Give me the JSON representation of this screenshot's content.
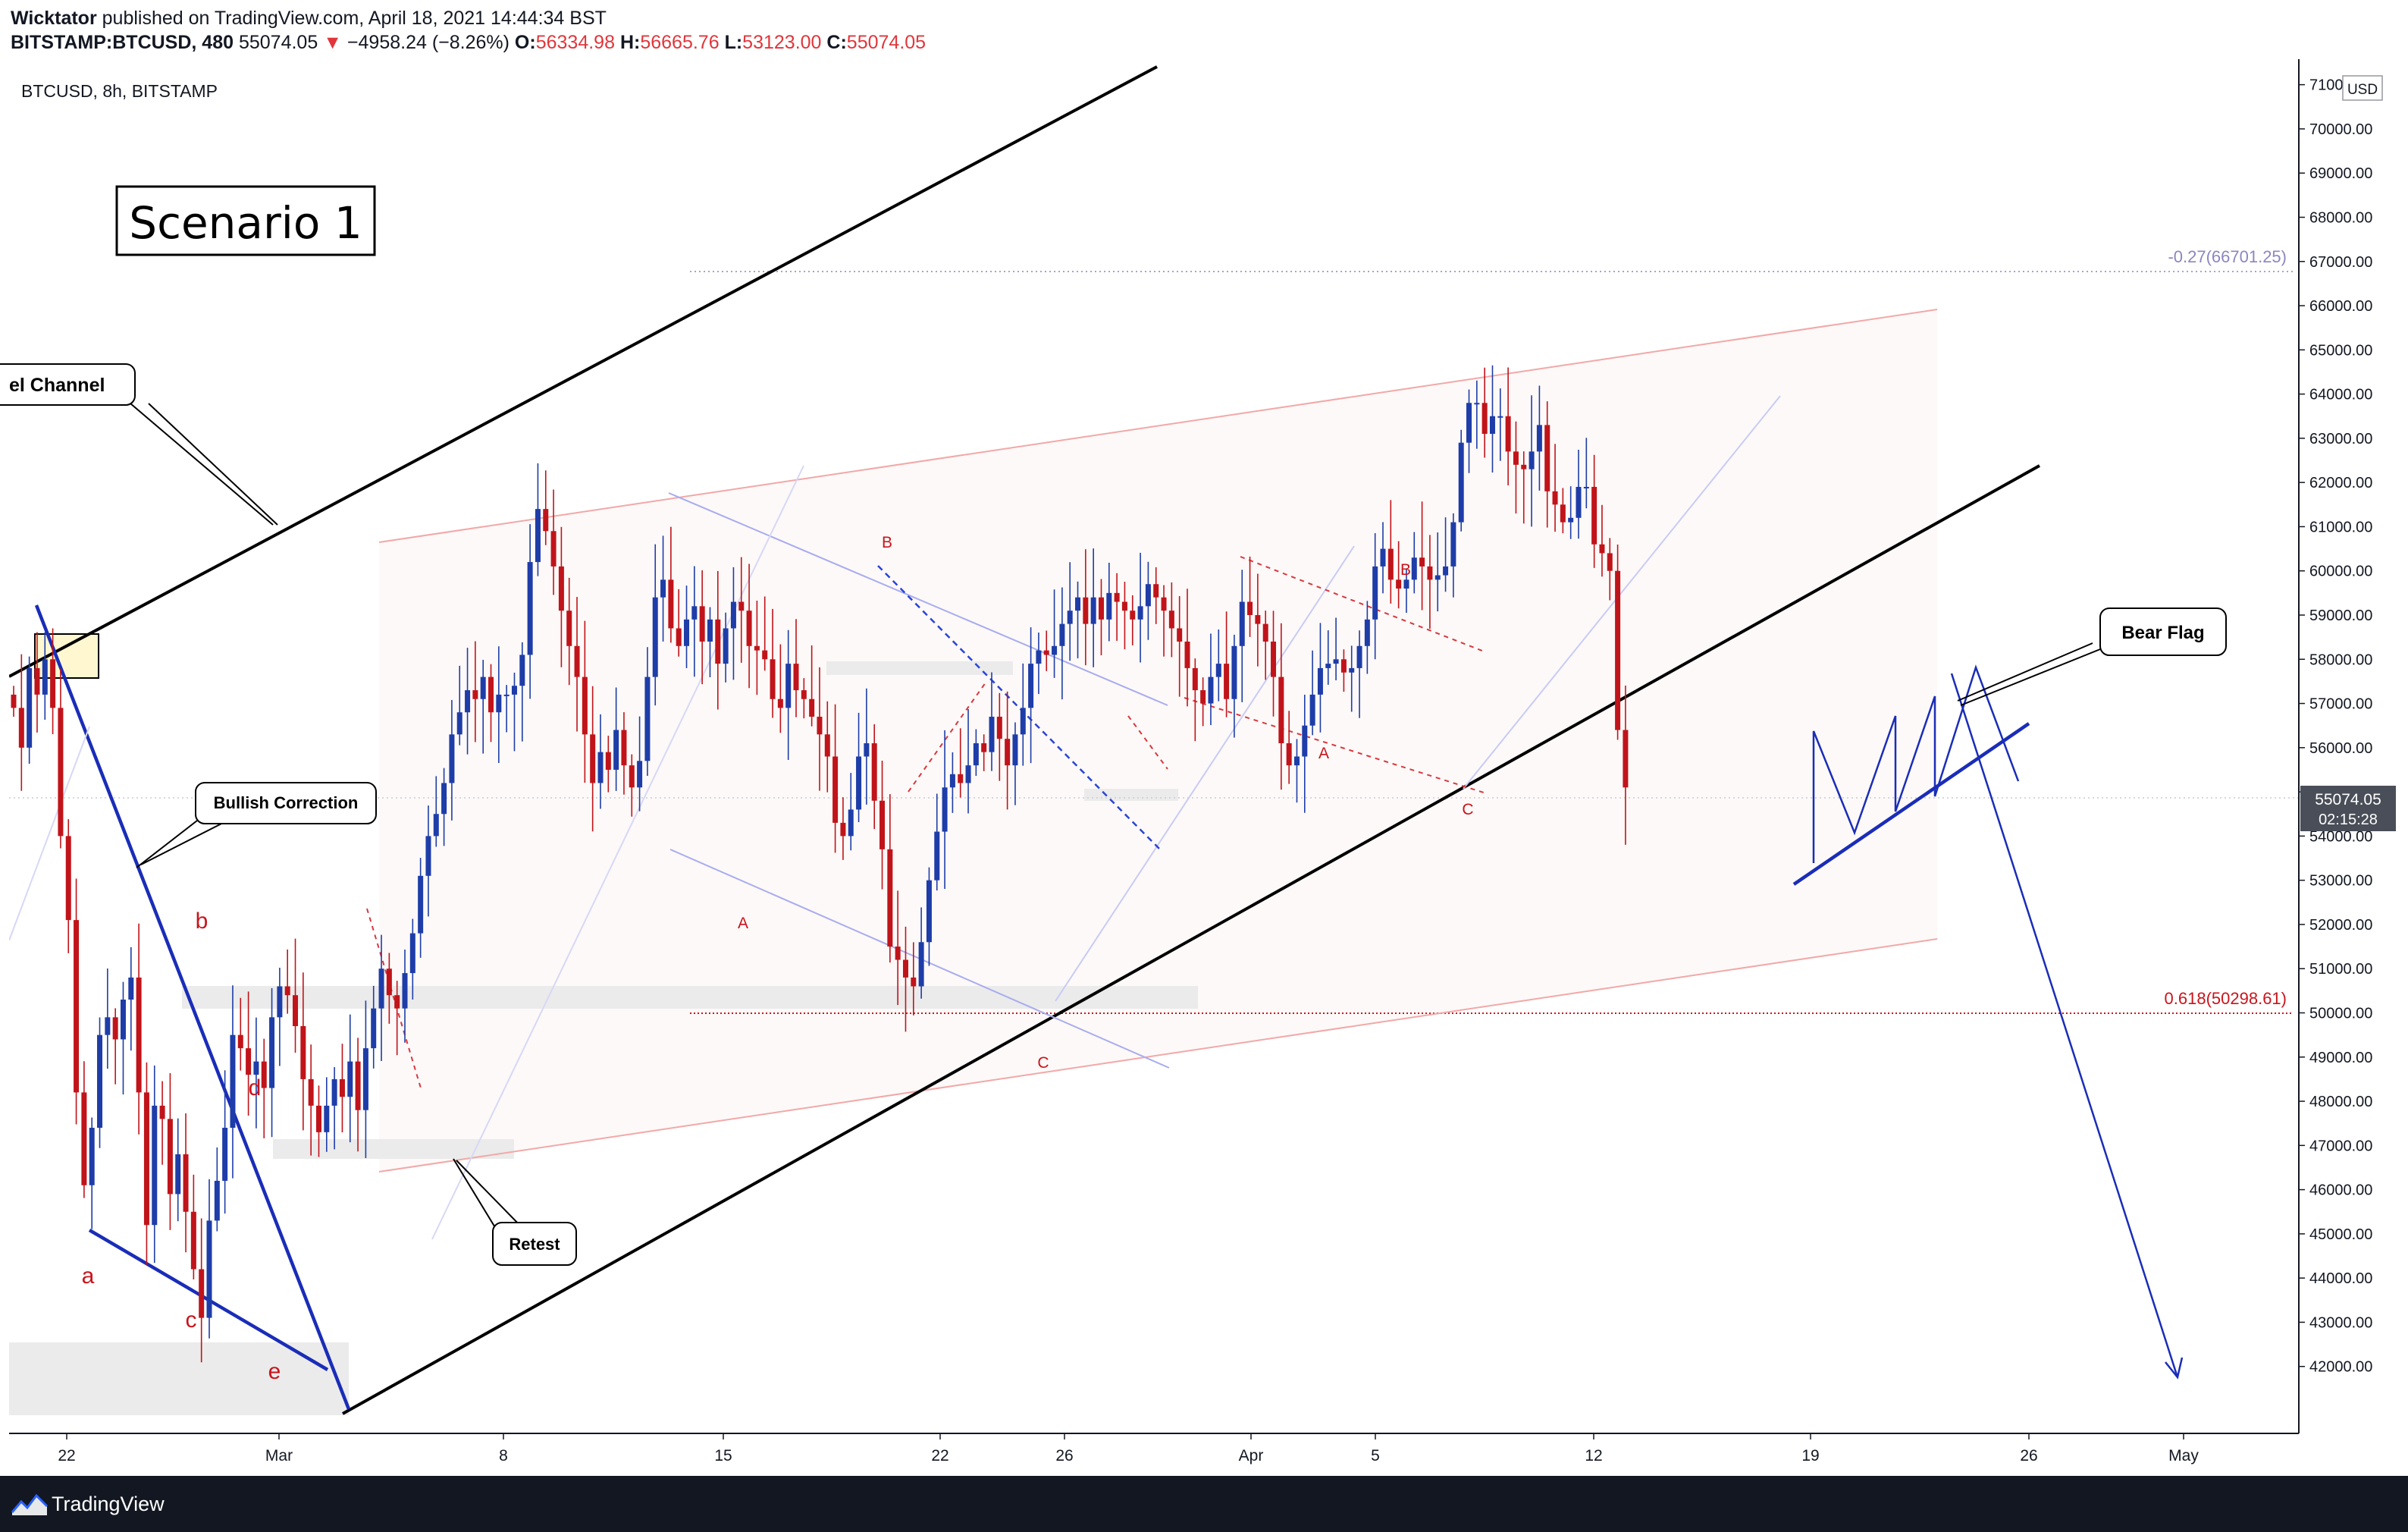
{
  "header": {
    "author": "Wicktator",
    "published_text": "published on TradingView.com, April 18, 2021 14:44:34 BST",
    "symbol_line_label": "BITSTAMP:BTCUSD, 480",
    "last_price": "55074.05",
    "change_arrow": "▼",
    "change": "−4958.24 (−8.26%)",
    "open_label": "O:",
    "open": "56334.98",
    "high_label": "H:",
    "high": "56665.76",
    "low_label": "L:",
    "low": "53123.00",
    "close_label": "C:",
    "close": "55074.05"
  },
  "footer": {
    "brand": "TradingView"
  },
  "colors": {
    "up": "#1e3da8",
    "down": "#c0141a",
    "red_label": "#c9141c",
    "blue_line": "#1a2db8",
    "accent_red": "#e0363b"
  },
  "chart_data": {
    "type": "candlestick",
    "legend": "BTCUSD, 8h, BITSTAMP",
    "title": "Scenario 1",
    "price_axis": {
      "currency": "USD",
      "ylim": [
        41000,
        71200
      ],
      "ticks": [
        "42000.00",
        "43000.00",
        "44000.00",
        "45000.00",
        "46000.00",
        "47000.00",
        "48000.00",
        "49000.00",
        "50000.00",
        "51000.00",
        "52000.00",
        "53000.00",
        "54000.00",
        "55000.00",
        "56000.00",
        "57000.00",
        "58000.00",
        "59000.00",
        "60000.00",
        "61000.00",
        "62000.00",
        "63000.00",
        "64000.00",
        "65000.00",
        "66000.00",
        "67000.00",
        "68000.00",
        "69000.00",
        "70000.00",
        "71000.00"
      ],
      "last_price_tag": "55074.05",
      "countdown": "02:15:28"
    },
    "time_axis": {
      "ticks": [
        "22",
        "Mar",
        "8",
        "15",
        "22",
        "26",
        "Apr",
        "5",
        "12",
        "19",
        "26",
        "May"
      ]
    },
    "fib_levels": [
      {
        "label": "-0.27(66701.25)",
        "price": 66701.25
      },
      {
        "label": "0.618(50298.61)",
        "price": 50298.61
      }
    ],
    "annotations": [
      "el Channel",
      "Bullish Correction",
      "Retest",
      "Bear Flag",
      "a",
      "b",
      "c",
      "d",
      "e",
      "A",
      "B",
      "C",
      "A",
      "B",
      "C"
    ],
    "approx_series_note_free": true,
    "ohlc_path": [
      56900,
      56000,
      57800,
      57200,
      58000,
      56900,
      54000,
      52100,
      48200,
      46100,
      47400,
      49500,
      49900,
      49400,
      50300,
      50800,
      48200,
      45200,
      47900,
      47600,
      45900,
      46800,
      45500,
      44200,
      43100,
      45300,
      46200,
      47400,
      49500,
      49200,
      48600,
      48900,
      48300,
      49900,
      50600,
      50400,
      49700,
      48500,
      47900,
      47300,
      47900,
      48500,
      48100,
      48900,
      47800,
      49200,
      50100,
      51000,
      50400,
      50100,
      50900,
      51800,
      53100,
      54000,
      54500,
      55200,
      56300,
      56800,
      57300,
      57100,
      57600,
      56800,
      57200,
      57200,
      57400,
      58100,
      60200,
      61400,
      60900,
      60100,
      59100,
      58300,
      57600,
      56300,
      55200,
      55900,
      55500,
      56400,
      55600,
      55100,
      55700,
      57600,
      59400,
      59800,
      58700,
      58300,
      58900,
      59200,
      58400,
      58900,
      57900,
      58700,
      59300,
      59100,
      58300,
      58200,
      58000,
      57100,
      56900,
      57900,
      57300,
      57100,
      56700,
      56300,
      55800,
      54300,
      54000,
      54600,
      55800,
      56100,
      54800,
      53700,
      51500,
      51200,
      50800,
      50600,
      51600,
      53000,
      54100,
      55100,
      55400,
      55200,
      55600,
      56100,
      55900,
      56700,
      56200,
      55600,
      56300,
      56900,
      57900,
      58200,
      58100,
      58300,
      58800,
      59100,
      59400,
      58800,
      59400,
      58900,
      59500,
      59300,
      59100,
      58900,
      59200,
      59700,
      59400,
      59100,
      58700,
      58400,
      57800,
      57300,
      57000,
      57600,
      57900,
      57100,
      58300,
      59300,
      59000,
      58800,
      58400,
      57600,
      56100,
      55600,
      55800,
      56500,
      57200,
      57800,
      57900,
      58000,
      57700,
      57800,
      58300,
      58900,
      60100,
      60500,
      59800,
      59600,
      59800,
      60300,
      60100,
      59800,
      59900,
      60100,
      61100,
      62900,
      63800,
      63800,
      63100,
      63500,
      63500,
      62700,
      62400,
      62300,
      62700,
      63300,
      61800,
      61500,
      61100,
      61200,
      61900,
      61900,
      60600,
      60400,
      60000,
      56400,
      55100
    ]
  }
}
